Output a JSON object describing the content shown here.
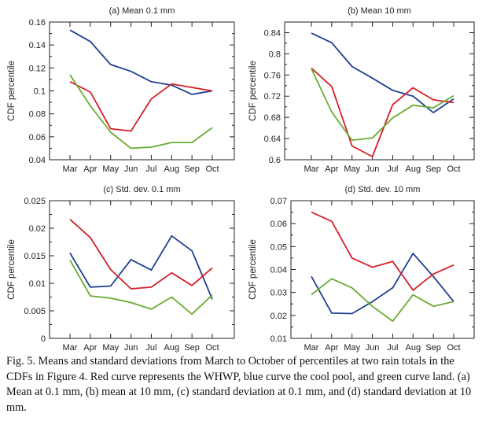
{
  "chart_data": [
    {
      "type": "line",
      "title": "(a) Mean 0.1 mm",
      "xlabel": "",
      "ylabel": "CDF percentile",
      "categories": [
        "Mar",
        "Apr",
        "May",
        "Jun",
        "Jul",
        "Aug",
        "Sep",
        "Oct"
      ],
      "ylim": [
        0.04,
        0.16
      ],
      "yticks": [
        0.04,
        0.06,
        0.08,
        0.1,
        0.12,
        0.14,
        0.16
      ],
      "ytick_labels": [
        "0.04",
        "0.06",
        "0.08",
        "0.1",
        "0.12",
        "0.14",
        "0.16"
      ],
      "grid": false,
      "series": [
        {
          "color": "#1f3f8f",
          "values": [
            0.153,
            0.143,
            0.123,
            0.117,
            0.108,
            0.105,
            0.097,
            0.1
          ]
        },
        {
          "color": "#d4202a",
          "values": [
            0.108,
            0.099,
            0.067,
            0.065,
            0.093,
            0.106,
            0.103,
            0.1
          ]
        },
        {
          "color": "#6aab32",
          "values": [
            0.114,
            0.087,
            0.064,
            0.05,
            0.051,
            0.055,
            0.055,
            0.068
          ]
        }
      ]
    },
    {
      "type": "line",
      "title": "(b) Mean 10 mm",
      "xlabel": "",
      "ylabel": "CDF percentile",
      "categories": [
        "Mar",
        "Apr",
        "May",
        "Jun",
        "Jul",
        "Aug",
        "Sep",
        "Oct"
      ],
      "ylim": [
        0.6,
        0.86
      ],
      "yticks": [
        0.6,
        0.64,
        0.68,
        0.72,
        0.76,
        0.8,
        0.84
      ],
      "ytick_labels": [
        "0.6",
        "0.64",
        "0.68",
        "0.72",
        "0.76",
        "0.8",
        "0.84"
      ],
      "grid": false,
      "series": [
        {
          "color": "#1f3f8f",
          "values": [
            0.839,
            0.821,
            0.776,
            0.754,
            0.731,
            0.72,
            0.689,
            0.715
          ]
        },
        {
          "color": "#d4202a",
          "values": [
            0.773,
            0.738,
            0.626,
            0.606,
            0.704,
            0.736,
            0.713,
            0.708
          ]
        },
        {
          "color": "#6aab32",
          "values": [
            0.772,
            0.69,
            0.637,
            0.641,
            0.679,
            0.703,
            0.698,
            0.721
          ]
        }
      ]
    },
    {
      "type": "line",
      "title": "(c) Std. dev. 0.1 mm",
      "xlabel": "",
      "ylabel": "CDF percentile",
      "categories": [
        "Mar",
        "Apr",
        "May",
        "Jun",
        "Jul",
        "Aug",
        "Sep",
        "Oct"
      ],
      "ylim": [
        0,
        0.025
      ],
      "yticks": [
        0,
        0.005,
        0.01,
        0.015,
        0.02,
        0.025
      ],
      "ytick_labels": [
        "0",
        "0.005",
        "0.01",
        "0.015",
        "0.02",
        "0.025"
      ],
      "grid": false,
      "series": [
        {
          "color": "#1f3f8f",
          "values": [
            0.0155,
            0.0093,
            0.0095,
            0.0143,
            0.0124,
            0.0186,
            0.0159,
            0.0071
          ]
        },
        {
          "color": "#d4202a",
          "values": [
            0.0216,
            0.0183,
            0.0125,
            0.009,
            0.0093,
            0.0119,
            0.0096,
            0.0128
          ]
        },
        {
          "color": "#6aab32",
          "values": [
            0.0142,
            0.0077,
            0.0073,
            0.0065,
            0.0053,
            0.0075,
            0.0044,
            0.0079
          ]
        }
      ]
    },
    {
      "type": "line",
      "title": "(d) Std. dev. 10 mm",
      "xlabel": "",
      "ylabel": "CDF percentile",
      "categories": [
        "Mar",
        "Apr",
        "May",
        "Jun",
        "Jul",
        "Aug",
        "Sep",
        "Oct"
      ],
      "ylim": [
        0.01,
        0.07
      ],
      "yticks": [
        0.01,
        0.02,
        0.03,
        0.04,
        0.05,
        0.06,
        0.07
      ],
      "ytick_labels": [
        "0.01",
        "0.02",
        "0.03",
        "0.04",
        "0.05",
        "0.06",
        "0.07"
      ],
      "grid": false,
      "series": [
        {
          "color": "#1f3f8f",
          "values": [
            0.037,
            0.021,
            0.0208,
            0.026,
            0.032,
            0.047,
            0.037,
            0.026
          ]
        },
        {
          "color": "#d4202a",
          "values": [
            0.065,
            0.061,
            0.045,
            0.041,
            0.0435,
            0.031,
            0.038,
            0.042
          ]
        },
        {
          "color": "#6aab32",
          "values": [
            0.029,
            0.036,
            0.032,
            0.024,
            0.0175,
            0.029,
            0.024,
            0.026
          ]
        }
      ]
    }
  ],
  "caption": "Fig. 5. Means and standard deviations from March to October of percentiles at two rain totals in the CDFs in Figure 4. Red curve represents the WHWP, blue curve the cool pool, and green curve land. (a) Mean at 0.1 mm, (b) mean at 10 mm, (c) standard deviation at 0.1 mm, and (d) standard deviation at 10 mm."
}
